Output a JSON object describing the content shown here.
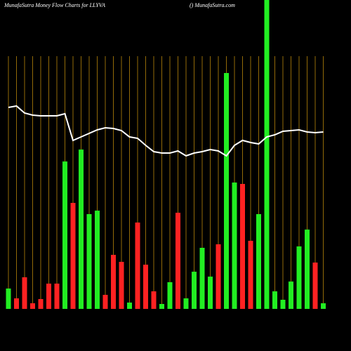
{
  "chart_data": {
    "type": "bar",
    "title": "MunafaSutra  Money Flow  Charts for LLYVA",
    "subtitle": "() MunafaSutra.com",
    "categories": [
      null,
      null,
      null,
      null,
      null,
      null,
      null,
      null,
      null,
      null,
      null,
      null,
      null,
      null,
      null,
      null,
      null,
      null,
      null,
      null,
      null,
      null,
      null,
      null,
      null,
      null,
      null,
      null,
      null,
      null,
      null,
      null,
      null,
      null,
      null,
      null,
      null,
      null,
      null,
      null
    ],
    "values": [
      29,
      15,
      45,
      8,
      14,
      36,
      36,
      210,
      151,
      227,
      135,
      140,
      20,
      77,
      67,
      9,
      123,
      63,
      25,
      7,
      38,
      137,
      15,
      53,
      87,
      46,
      92,
      336,
      180,
      178,
      97,
      135,
      440,
      25,
      13,
      39,
      89,
      113,
      66,
      8
    ],
    "bar_colors": [
      "#22ee22",
      "#ff2222",
      "#ff2222",
      "#ff2222",
      "#ff2222",
      "#ff2222",
      "#ff2222",
      "#22ee22",
      "#ff2222",
      "#22ee22",
      "#22ee22",
      "#22ee22",
      "#ff2222",
      "#ff2222",
      "#ff2222",
      "#22ee22",
      "#ff2222",
      "#ff2222",
      "#ff2222",
      "#22ee22",
      "#22ee22",
      "#ff2222",
      "#22ee22",
      "#22ee22",
      "#22ee22",
      "#22ee22",
      "#ff2222",
      "#22ee22",
      "#22ee22",
      "#ff2222",
      "#ff2222",
      "#22ee22",
      "#22ee22",
      "#22ee22",
      "#22ee22",
      "#22ee22",
      "#22ee22",
      "#22ee22",
      "#ff2222",
      "#22ee22"
    ],
    "line": {
      "color": "#ffffff",
      "values": [
        287,
        289,
        279,
        276,
        275,
        275,
        275,
        278,
        240,
        245,
        250,
        255,
        258,
        257,
        254,
        245,
        243,
        233,
        224,
        222,
        222,
        225,
        218,
        222,
        224,
        227,
        225,
        218,
        233,
        240,
        237,
        235,
        245,
        248,
        253,
        254,
        255,
        252,
        251,
        252
      ]
    },
    "ylim": [
      0,
      440
    ],
    "grid_color": "#b8860b"
  }
}
